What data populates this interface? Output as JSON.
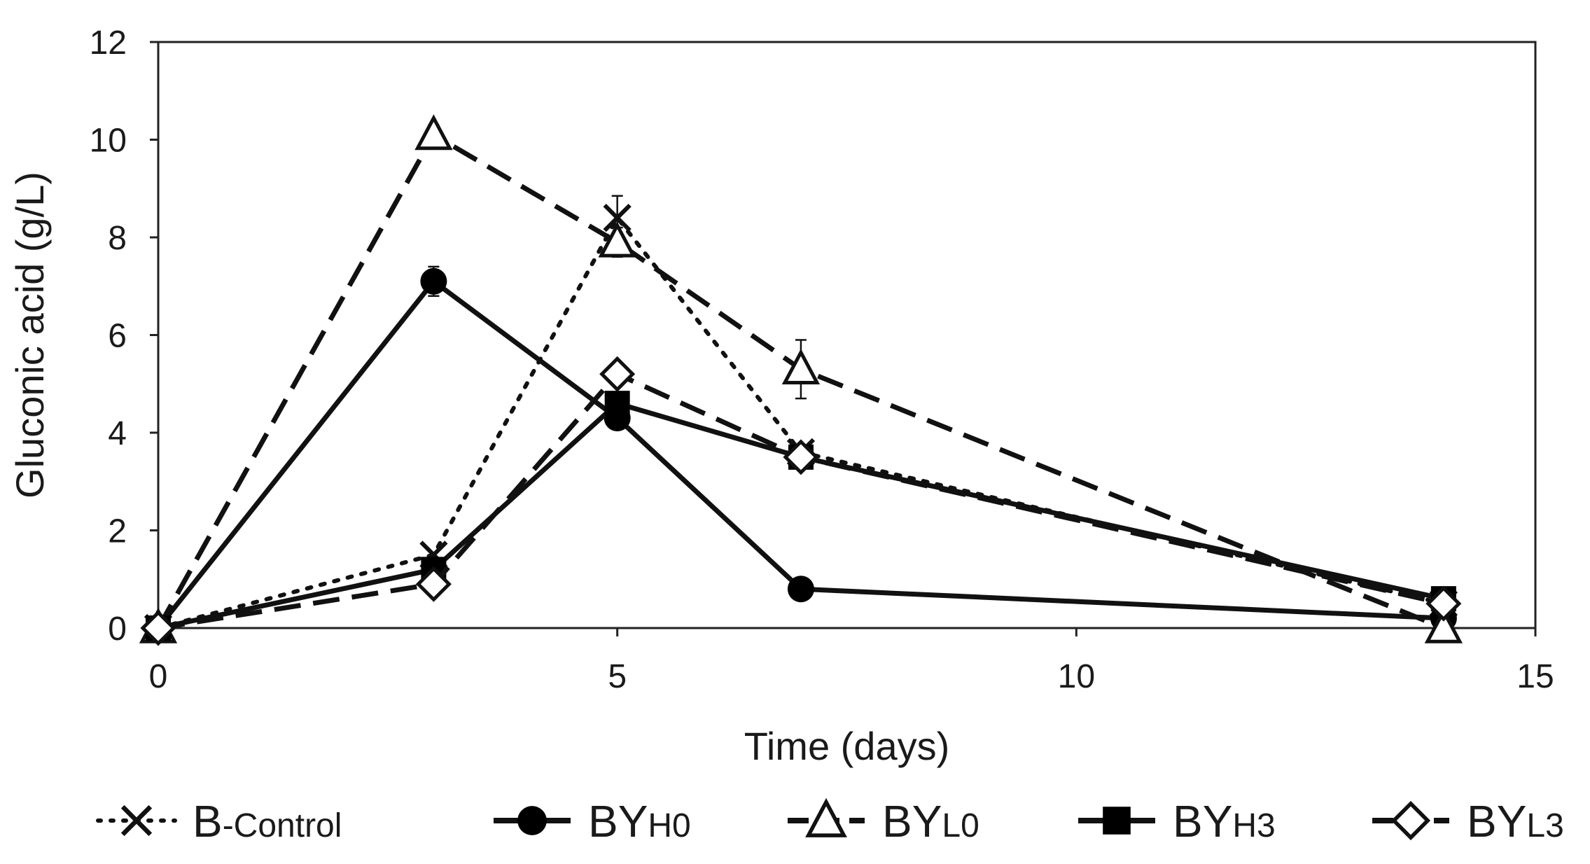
{
  "chart_data": {
    "type": "line",
    "title": "",
    "xlabel": "Time (days)",
    "ylabel": "Gluconic acid (g/L)",
    "xlim": [
      0,
      15
    ],
    "ylim": [
      0,
      12
    ],
    "xticks": [
      "0",
      "5",
      "10",
      "15"
    ],
    "yticks": [
      "0",
      "2",
      "4",
      "6",
      "8",
      "10",
      "12"
    ],
    "grid": false,
    "legend_position": "bottom",
    "series": [
      {
        "name": "B-Control",
        "name_main": "B",
        "name_sub": "-Control",
        "marker": "x",
        "line_style": "dotted",
        "x": [
          0,
          3,
          5,
          7,
          14
        ],
        "y": [
          0.0,
          1.5,
          8.4,
          3.6,
          0.5
        ],
        "errors": [
          0.05,
          0.1,
          0.45,
          0.15,
          0.1
        ]
      },
      {
        "name": "BYH0",
        "name_main": "BY",
        "name_sub": "H0",
        "marker": "circle",
        "line_style": "solid",
        "x": [
          0,
          3,
          5,
          7,
          14
        ],
        "y": [
          0.0,
          7.1,
          4.3,
          0.8,
          0.2
        ],
        "errors": [
          0.05,
          0.3,
          0.2,
          0.1,
          0.05
        ]
      },
      {
        "name": "BYL0",
        "name_main": "BY",
        "name_sub": "L0",
        "marker": "triangle",
        "line_style": "dashed",
        "x": [
          0,
          3,
          5,
          7,
          14
        ],
        "y": [
          0.0,
          10.1,
          7.9,
          5.3,
          0.0
        ],
        "errors": [
          0.05,
          0.2,
          0.3,
          0.6,
          0.05
        ]
      },
      {
        "name": "BYH3",
        "name_main": "BY",
        "name_sub": "H3",
        "marker": "square",
        "line_style": "solid",
        "x": [
          0,
          3,
          5,
          7,
          14
        ],
        "y": [
          0.0,
          1.2,
          4.6,
          3.5,
          0.6
        ],
        "errors": [
          0.05,
          0.1,
          0.2,
          0.15,
          0.1
        ]
      },
      {
        "name": "BYL3",
        "name_main": "BY",
        "name_sub": "L3",
        "marker": "diamond",
        "line_style": "dashed",
        "x": [
          0,
          3,
          5,
          7,
          14
        ],
        "y": [
          0.0,
          0.9,
          5.2,
          3.5,
          0.5
        ],
        "errors": [
          0.05,
          0.1,
          0.2,
          0.15,
          0.1
        ]
      }
    ]
  }
}
